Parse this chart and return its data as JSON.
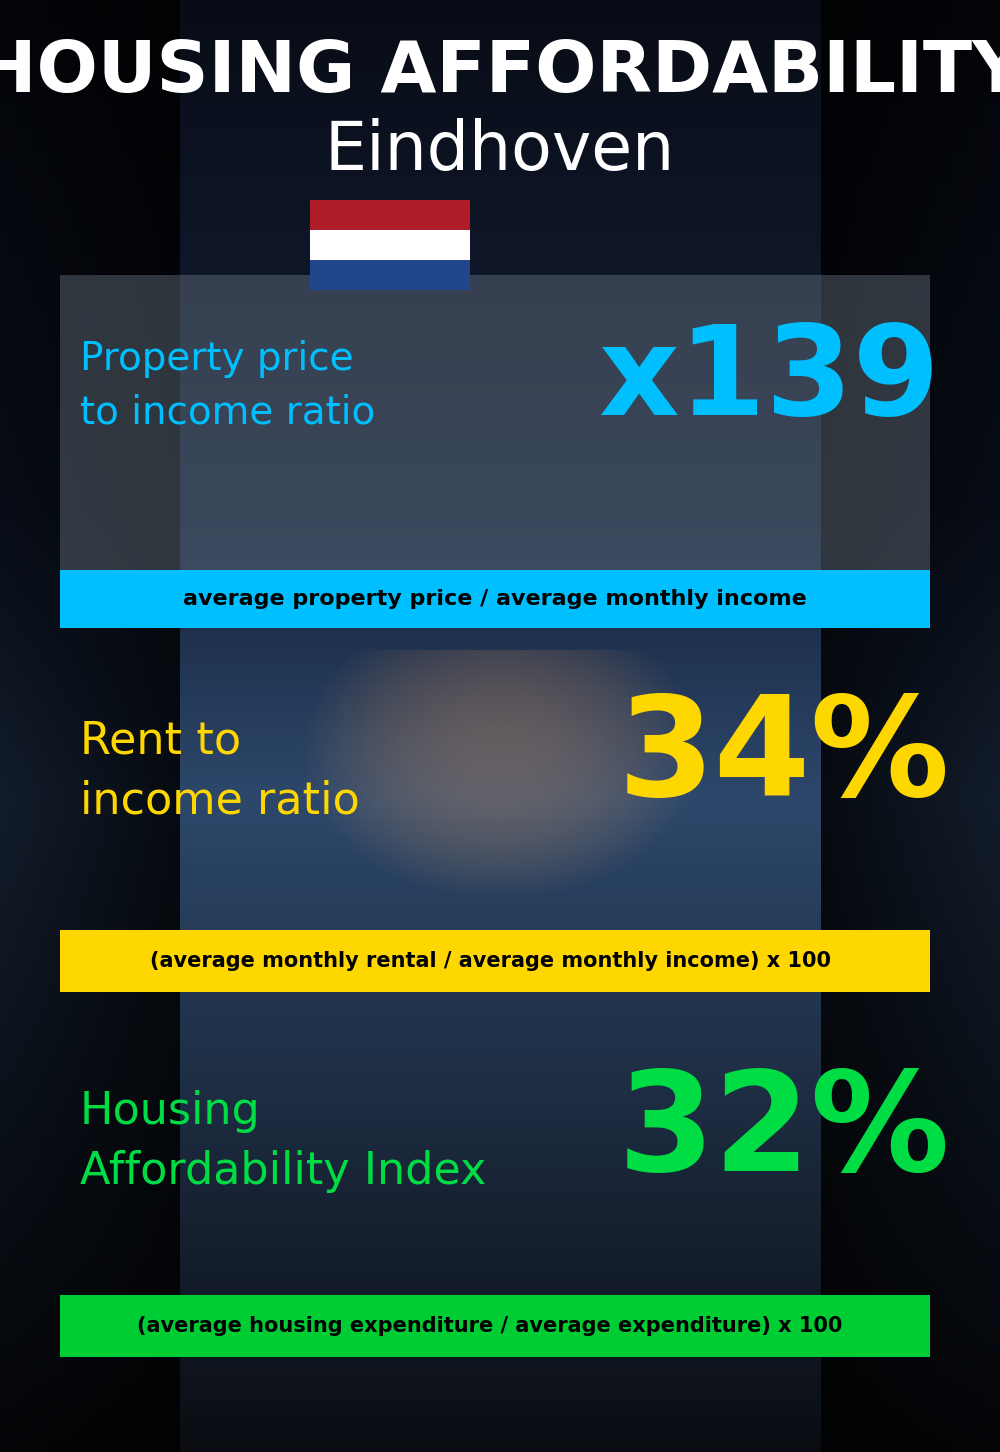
{
  "title_line1": "HOUSING AFFORDABILITY",
  "title_line2": "Eindhoven",
  "bg_color": "#060d18",
  "title1_color": "#ffffff",
  "title2_color": "#ffffff",
  "section1_label": "Property price\nto income ratio",
  "section1_value": "x139",
  "section1_label_color": "#00bfff",
  "section1_value_color": "#00bfff",
  "section1_formula": "average property price / average monthly income",
  "section1_formula_bg": "#00bfff",
  "section1_formula_color": "#000000",
  "section2_label": "Rent to\nincome ratio",
  "section2_value": "34%",
  "section2_label_color": "#FFD700",
  "section2_value_color": "#FFD700",
  "section2_formula": "(average monthly rental / average monthly income) x 100",
  "section2_formula_bg": "#FFD700",
  "section2_formula_color": "#000000",
  "section3_label": "Housing\nAffordability Index",
  "section3_value": "32%",
  "section3_label_color": "#00dd44",
  "section3_value_color": "#00dd44",
  "section3_formula": "(average housing expenditure / average expenditure) x 100",
  "section3_formula_bg": "#00cc33",
  "section3_formula_color": "#000000",
  "flag_red": "#AE1C28",
  "flag_white": "#FFFFFF",
  "flag_blue": "#21468B"
}
